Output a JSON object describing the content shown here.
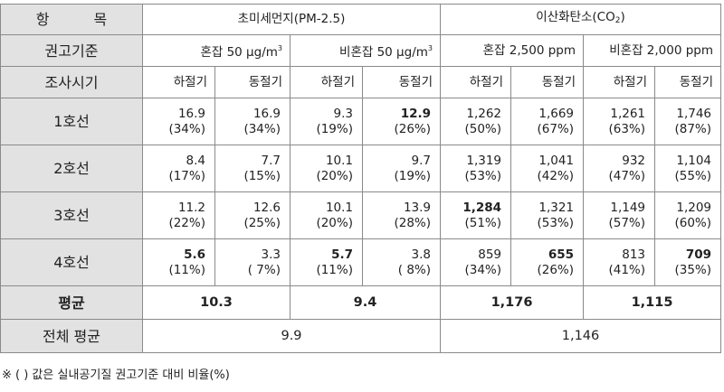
{
  "labels": {
    "item": "항 목",
    "standard": "권고기준",
    "period": "조사시기",
    "average": "평균",
    "total_average": "전체 평균"
  },
  "columns": {
    "pm25_pre": "초미세먼지(PM-2.5)",
    "co2_pre": "이산화탄소(CO",
    "co2_sub": "2",
    "co2_post": ")"
  },
  "standards": {
    "pm_crowd": "혼잡 50 μg/m",
    "pm_noncrowd": "비혼잡 50 μg/m",
    "pm_sup": "3",
    "co2_crowd": "혼잡 2,500 ppm",
    "co2_noncrowd": "비혼잡 2,000 ppm"
  },
  "periods": [
    "하절기",
    "동절기",
    "하절기",
    "동절기",
    "하절기",
    "동절기",
    "하절기",
    "동절기"
  ],
  "rows": [
    {
      "line": "1호선",
      "cells": [
        [
          "16.9",
          "(34%)"
        ],
        [
          "16.9",
          "(34%)"
        ],
        [
          "9.3",
          "(19%)"
        ],
        [
          "12.9",
          "(26%)"
        ],
        [
          "1,262",
          "(50%)"
        ],
        [
          "1,669",
          "(67%)"
        ],
        [
          "1,261",
          "(63%)"
        ],
        [
          "1,746",
          "(87%)"
        ]
      ]
    },
    {
      "line": "2호선",
      "cells": [
        [
          "8.4",
          "(17%)"
        ],
        [
          "7.7",
          "(15%)"
        ],
        [
          "10.1",
          "(20%)"
        ],
        [
          "9.7",
          "(19%)"
        ],
        [
          "1,319",
          "(53%)"
        ],
        [
          "1,041",
          "(42%)"
        ],
        [
          "932",
          "(47%)"
        ],
        [
          "1,104",
          "(55%)"
        ]
      ]
    },
    {
      "line": "3호선",
      "cells": [
        [
          "11.2",
          "(22%)"
        ],
        [
          "12.6",
          "(25%)"
        ],
        [
          "10.1",
          "(20%)"
        ],
        [
          "13.9",
          "(28%)"
        ],
        [
          "1,284",
          "(51%)"
        ],
        [
          "1,321",
          "(53%)"
        ],
        [
          "1,149",
          "(57%)"
        ],
        [
          "1,209",
          "(60%)"
        ]
      ]
    },
    {
      "line": "4호선",
      "cells": [
        [
          "5.6",
          "(11%)"
        ],
        [
          "3.3",
          "( 7%)"
        ],
        [
          "5.7",
          "(11%)"
        ],
        [
          "3.8",
          "( 8%)"
        ],
        [
          "859",
          "(34%)"
        ],
        [
          "655",
          "(26%)"
        ],
        [
          "813",
          "(41%)"
        ],
        [
          "709",
          "(35%)"
        ]
      ]
    }
  ],
  "averages": [
    "10.3",
    "9.4",
    "1,176",
    "1,115"
  ],
  "total_averages": [
    "9.9",
    "1,146"
  ],
  "note": "※ ( ) 값은 실내공기질 권고기준 대비 비율(%)"
}
